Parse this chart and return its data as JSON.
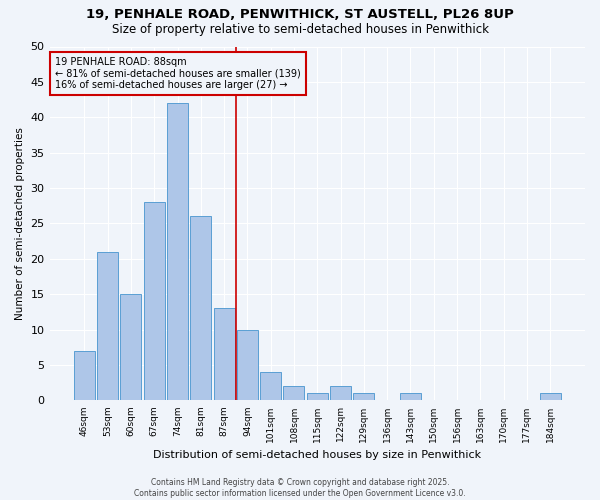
{
  "title_line1": "19, PENHALE ROAD, PENWITHICK, ST AUSTELL, PL26 8UP",
  "title_line2": "Size of property relative to semi-detached houses in Penwithick",
  "xlabel": "Distribution of semi-detached houses by size in Penwithick",
  "ylabel": "Number of semi-detached properties",
  "categories": [
    "46sqm",
    "53sqm",
    "60sqm",
    "67sqm",
    "74sqm",
    "81sqm",
    "87sqm",
    "94sqm",
    "101sqm",
    "108sqm",
    "115sqm",
    "122sqm",
    "129sqm",
    "136sqm",
    "143sqm",
    "150sqm",
    "156sqm",
    "163sqm",
    "170sqm",
    "177sqm",
    "184sqm"
  ],
  "values": [
    7,
    21,
    15,
    28,
    42,
    26,
    13,
    10,
    4,
    2,
    1,
    2,
    1,
    0,
    1,
    0,
    0,
    0,
    0,
    0,
    1
  ],
  "bar_color": "#aec6e8",
  "bar_edge_color": "#5a9fd4",
  "annotation_title": "19 PENHALE ROAD: 88sqm",
  "annotation_line2": "← 81% of semi-detached houses are smaller (139)",
  "annotation_line3": "16% of semi-detached houses are larger (27) →",
  "vline_color": "#cc0000",
  "annotation_box_color": "#cc0000",
  "background_color": "#f0f4fa",
  "grid_color": "#ffffff",
  "ylim": [
    0,
    50
  ],
  "yticks": [
    0,
    5,
    10,
    15,
    20,
    25,
    30,
    35,
    40,
    45,
    50
  ],
  "footer_line1": "Contains HM Land Registry data © Crown copyright and database right 2025.",
  "footer_line2": "Contains public sector information licensed under the Open Government Licence v3.0."
}
